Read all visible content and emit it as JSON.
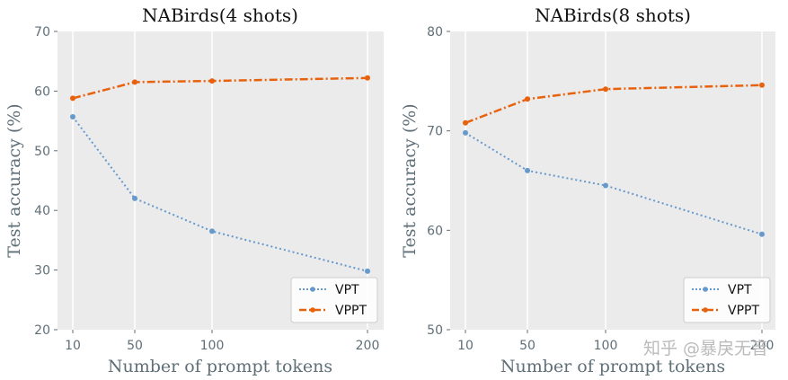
{
  "chart_data": [
    {
      "type": "line",
      "title": "NABirds(4 shots)",
      "xlabel": "Number of prompt tokens",
      "ylabel": "Test accuracy (%)",
      "x": [
        10,
        50,
        100,
        200
      ],
      "x_tick_labels": [
        "10",
        "50",
        "100",
        "200"
      ],
      "yticks": [
        20,
        30,
        40,
        50,
        60,
        70
      ],
      "ylim": [
        20,
        70
      ],
      "grid": true,
      "legend_loc": "bottom-right",
      "series": [
        {
          "name": "VPT",
          "values": [
            55.7,
            42.0,
            36.5,
            29.8
          ],
          "color": "#6699cc",
          "style": "dotted"
        },
        {
          "name": "VPPT",
          "values": [
            58.8,
            61.5,
            61.7,
            62.2
          ],
          "color": "#e8620e",
          "style": "dashdot"
        }
      ]
    },
    {
      "type": "line",
      "title": "NABirds(8 shots)",
      "xlabel": "Number of prompt tokens",
      "ylabel": "Test accuracy (%)",
      "x": [
        10,
        50,
        100,
        200
      ],
      "x_tick_labels": [
        "10",
        "50",
        "100",
        "200"
      ],
      "yticks": [
        50,
        60,
        70,
        80
      ],
      "ylim": [
        50,
        80
      ],
      "grid": true,
      "legend_loc": "bottom-right",
      "series": [
        {
          "name": "VPT",
          "values": [
            69.8,
            66.0,
            64.5,
            59.6
          ],
          "color": "#6699cc",
          "style": "dotted"
        },
        {
          "name": "VPPT",
          "values": [
            70.8,
            73.2,
            74.2,
            74.6
          ],
          "color": "#e8620e",
          "style": "dashdot"
        }
      ]
    }
  ],
  "watermark": "知乎 @暴戾无音"
}
